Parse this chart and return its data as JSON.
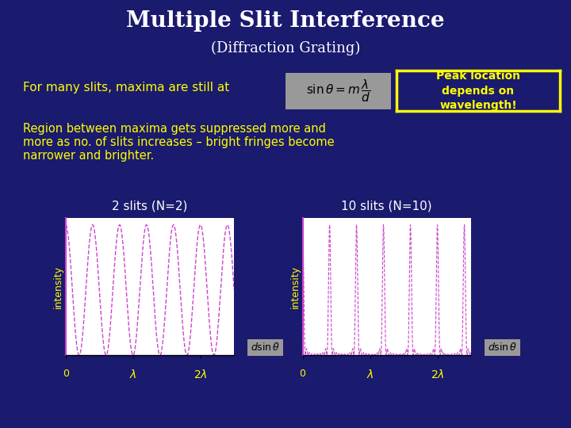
{
  "bg_color": "#1a1a6e",
  "title": "Multiple Slit Interference",
  "subtitle": "(Diffraction Grating)",
  "title_color": "#ffffff",
  "subtitle_color": "#ffffff",
  "peak_note": "Peak location\ndepends on\nwavelength!",
  "peak_note_color": "#ffff00",
  "peak_note_border": "#ffff00",
  "body_text1": "Region between maxima gets suppressed more and",
  "body_text2": "more as no. of slits increases – bright fringes become",
  "body_text3": "narrower and brighter.",
  "body_color": "#ffff00",
  "label_left": "For many slits, maxima are still at",
  "label_left_color": "#ffff00",
  "plot1_title": "2 slits (N=2)",
  "plot2_title": "10 slits (N=10)",
  "plot_title_color": "#ffffff",
  "plot_line_color": "#cc44cc",
  "plot_bg": "#ffffff",
  "ylabel_color": "#ffff00",
  "tick_label_color": "#ffff00",
  "arrow_color": "#cc44cc",
  "xlabel_bg": "#999999",
  "N2": 2,
  "N10": 10
}
